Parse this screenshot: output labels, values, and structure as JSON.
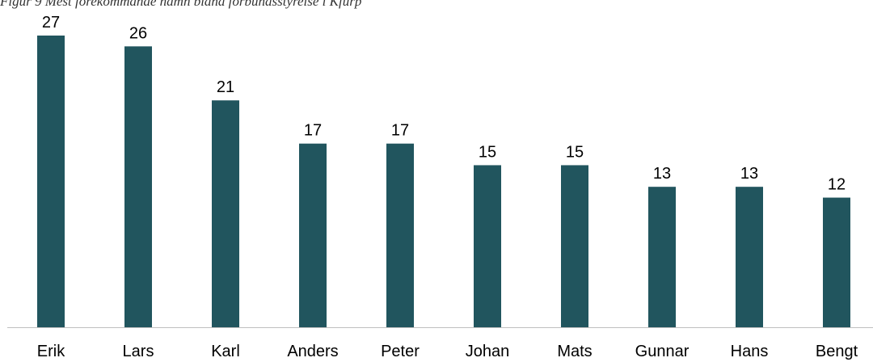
{
  "caption": "Figur 9 Mest förekommande namn bland förbundsstyrelse i Kfurp",
  "chart_data": {
    "type": "bar",
    "title": "Figur 9 Mest förekommande namn bland förbundsstyrelse i Kfurp",
    "categories": [
      "Erik",
      "Lars",
      "Karl",
      "Anders",
      "Peter",
      "Johan",
      "Mats",
      "Gunnar",
      "Hans",
      "Bengt"
    ],
    "values": [
      27,
      26,
      21,
      17,
      17,
      15,
      15,
      13,
      13,
      12
    ],
    "xlabel": "",
    "ylabel": "",
    "ylim": [
      0,
      30
    ],
    "grid": false,
    "data_labels": true,
    "bar_color": "#21555E",
    "axis_color": "#BFBFBF"
  }
}
